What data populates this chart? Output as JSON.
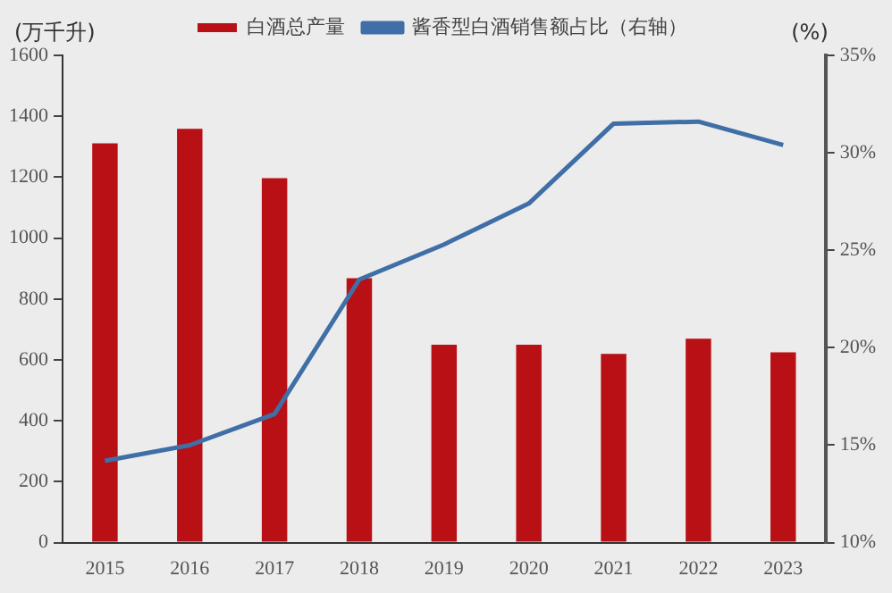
{
  "chart_data": {
    "type": "bar",
    "ylabel": "(万千升)",
    "y2label": "(%)",
    "categories": [
      "2015",
      "2016",
      "2017",
      "2018",
      "2019",
      "2020",
      "2021",
      "2022",
      "2023"
    ],
    "series": [
      {
        "name": "白酒总产量",
        "color": "#b81015",
        "values": [
          1311,
          1359,
          1197,
          868,
          650,
          650,
          620,
          670,
          625
        ]
      },
      {
        "name": "酱香型白酒销售额占比（右轴）",
        "type": "line",
        "axis": "y2",
        "color": "#3f6fa6",
        "values": [
          14.2,
          15.0,
          16.6,
          23.5,
          25.3,
          27.4,
          31.5,
          31.6,
          30.4
        ]
      }
    ],
    "ylim": [
      0,
      1600
    ],
    "yticks": [
      0,
      200,
      400,
      600,
      800,
      1000,
      1200,
      1400,
      1600
    ],
    "y2lim": [
      10,
      35
    ],
    "y2ticks": [
      {
        "value": 10,
        "label": "10%"
      },
      {
        "value": 15,
        "label": "15%"
      },
      {
        "value": 20,
        "label": "20%"
      },
      {
        "value": 25,
        "label": "25%"
      },
      {
        "value": 30,
        "label": "30%"
      },
      {
        "value": 35,
        "label": "35%"
      }
    ],
    "grid": false,
    "legend": "top",
    "marker": "none",
    "line_style": "solid"
  }
}
